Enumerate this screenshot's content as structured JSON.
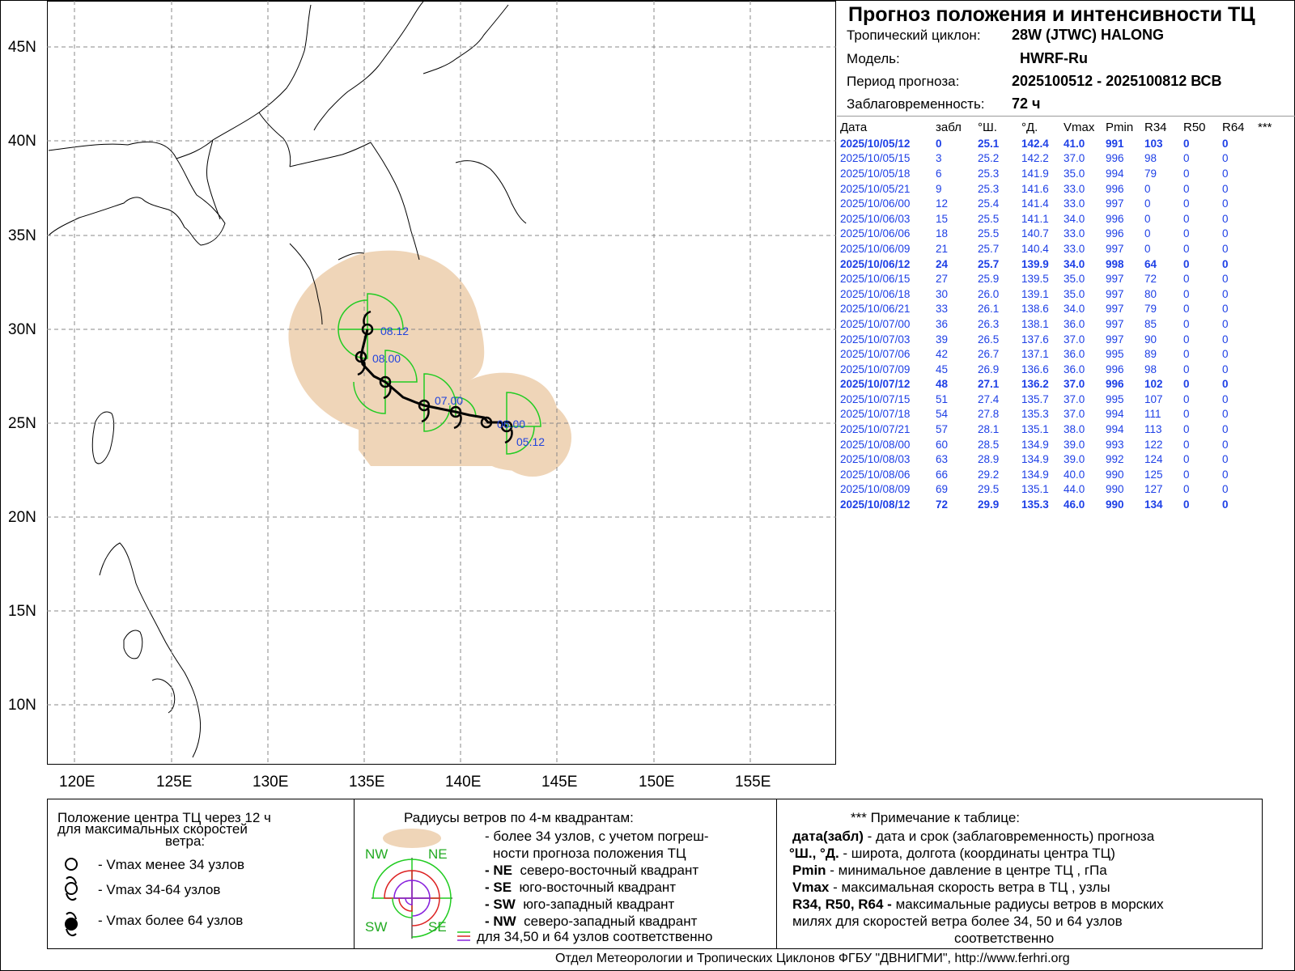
{
  "map": {
    "lat_labels": [
      "45N",
      "40N",
      "35N",
      "30N",
      "25N",
      "20N",
      "15N",
      "10N"
    ],
    "lon_labels": [
      "120E",
      "125E",
      "130E",
      "135E",
      "140E",
      "145E",
      "150E",
      "155E"
    ],
    "time_labels": [
      "08.12",
      "08.00",
      "07.00",
      "06.00",
      "05.12"
    ],
    "colors": {
      "uncertainty": "#efd5b8",
      "radii_34": "#22cc22",
      "track": "#000000",
      "label": "#2244dd"
    }
  },
  "info": {
    "title": "Прогноз положения и интенсивности ТЦ",
    "cyclone_key": "Тропический циклон:",
    "cyclone_val": "28W (JTWC)  HALONG",
    "model_key": "Модель:",
    "model_val": "HWRF-Ru",
    "period_key": "Период прогноза:",
    "period_val": "2025100512 - 2025100812 ВСВ",
    "lead_key": "Заблаговременность:",
    "lead_val": "72 ч"
  },
  "table": {
    "headers": [
      "Дата",
      "забл",
      "°Ш.",
      "°Д.",
      "Vmax",
      "Pmin",
      "R34",
      "R50",
      "R64",
      "***"
    ],
    "rows": [
      [
        "2025/10/05/12",
        "0",
        "25.1",
        "142.4",
        "41.0",
        "991",
        "103",
        "0",
        "0"
      ],
      [
        "2025/10/05/15",
        "3",
        "25.2",
        "142.2",
        "37.0",
        "996",
        "98",
        "0",
        "0"
      ],
      [
        "2025/10/05/18",
        "6",
        "25.3",
        "141.9",
        "35.0",
        "994",
        "79",
        "0",
        "0"
      ],
      [
        "2025/10/05/21",
        "9",
        "25.3",
        "141.6",
        "33.0",
        "996",
        "0",
        "0",
        "0"
      ],
      [
        "2025/10/06/00",
        "12",
        "25.4",
        "141.4",
        "33.0",
        "997",
        "0",
        "0",
        "0"
      ],
      [
        "2025/10/06/03",
        "15",
        "25.5",
        "141.1",
        "34.0",
        "996",
        "0",
        "0",
        "0"
      ],
      [
        "2025/10/06/06",
        "18",
        "25.5",
        "140.7",
        "33.0",
        "996",
        "0",
        "0",
        "0"
      ],
      [
        "2025/10/06/09",
        "21",
        "25.7",
        "140.4",
        "33.0",
        "997",
        "0",
        "0",
        "0"
      ],
      [
        "2025/10/06/12",
        "24",
        "25.7",
        "139.9",
        "34.0",
        "998",
        "64",
        "0",
        "0"
      ],
      [
        "2025/10/06/15",
        "27",
        "25.9",
        "139.5",
        "35.0",
        "997",
        "72",
        "0",
        "0"
      ],
      [
        "2025/10/06/18",
        "30",
        "26.0",
        "139.1",
        "35.0",
        "997",
        "80",
        "0",
        "0"
      ],
      [
        "2025/10/06/21",
        "33",
        "26.1",
        "138.6",
        "34.0",
        "997",
        "79",
        "0",
        "0"
      ],
      [
        "2025/10/07/00",
        "36",
        "26.3",
        "138.1",
        "36.0",
        "997",
        "85",
        "0",
        "0"
      ],
      [
        "2025/10/07/03",
        "39",
        "26.5",
        "137.6",
        "37.0",
        "997",
        "90",
        "0",
        "0"
      ],
      [
        "2025/10/07/06",
        "42",
        "26.7",
        "137.1",
        "36.0",
        "995",
        "89",
        "0",
        "0"
      ],
      [
        "2025/10/07/09",
        "45",
        "26.9",
        "136.6",
        "36.0",
        "996",
        "98",
        "0",
        "0"
      ],
      [
        "2025/10/07/12",
        "48",
        "27.1",
        "136.2",
        "37.0",
        "996",
        "102",
        "0",
        "0"
      ],
      [
        "2025/10/07/15",
        "51",
        "27.4",
        "135.7",
        "37.0",
        "995",
        "107",
        "0",
        "0"
      ],
      [
        "2025/10/07/18",
        "54",
        "27.8",
        "135.3",
        "37.0",
        "994",
        "111",
        "0",
        "0"
      ],
      [
        "2025/10/07/21",
        "57",
        "28.1",
        "135.1",
        "38.0",
        "994",
        "113",
        "0",
        "0"
      ],
      [
        "2025/10/08/00",
        "60",
        "28.5",
        "134.9",
        "39.0",
        "993",
        "122",
        "0",
        "0"
      ],
      [
        "2025/10/08/03",
        "63",
        "28.9",
        "134.9",
        "39.0",
        "992",
        "124",
        "0",
        "0"
      ],
      [
        "2025/10/08/06",
        "66",
        "29.2",
        "134.9",
        "40.0",
        "990",
        "125",
        "0",
        "0"
      ],
      [
        "2025/10/08/09",
        "69",
        "29.5",
        "135.1",
        "44.0",
        "990",
        "127",
        "0",
        "0"
      ],
      [
        "2025/10/08/12",
        "72",
        "29.9",
        "135.3",
        "46.0",
        "990",
        "134",
        "0",
        "0"
      ]
    ]
  },
  "legend": {
    "pos_l1": "Положение центра ТЦ через 12 ч",
    "pos_l2": "для максимальных скоростей",
    "pos_l3": "ветра:",
    "pos_i1": "- Vmax  менее 34 узлов",
    "pos_i2": "- Vmax  34-64 узлов",
    "pos_i3": "- Vmax  более 64 узлов",
    "rad_title": "Радиусы ветров по 4-м квадрантам:",
    "rad_1a": "- более 34 узлов, с учетом погреш-",
    "rad_1b": "ности прогноза положения ТЦ",
    "rad_ne_k": "- NE",
    "rad_ne_v": "северо-восточный квадрант",
    "rad_se_k": "- SE",
    "rad_se_v": "юго-восточный квадрант",
    "rad_sw_k": "- SW",
    "rad_sw_v": "юго-западный квадрант",
    "rad_nw_k": "- NW",
    "rad_nw_v": "северо-западный квадрант",
    "rad_last": "для 34,50 и 64 узлов соответственно",
    "q_nw": "NW",
    "q_ne": "NE",
    "q_sw": "SW",
    "q_se": "SE",
    "note_title": "*** Примечание к таблице:",
    "n1_k": "дата(забл)",
    "n1_v": " - дата и срок (заблаговременность) прогноза",
    "n2_k": "°Ш., °Д.",
    "n2_v": " - широта, долгота   (координаты центра ТЦ)",
    "n3_k": "Pmin",
    "n3_v": " - минимальное давление в центре ТЦ , гПа",
    "n4_k": "Vmax",
    "n4_v": "  -  максимальная скорость ветра в ТЦ , узлы",
    "n5_k": "R34, R50, R64 -",
    "n5_v": " максимальные радиусы ветров в морских",
    "n6": "милях для скоростей ветра более 34, 50 и 64 узлов",
    "n7": "соответственно"
  },
  "footer": "Отдел Метеорологии и Тропических Циклонов ФГБУ \"ДВНИГМИ\",  http://www.ferhri.org"
}
